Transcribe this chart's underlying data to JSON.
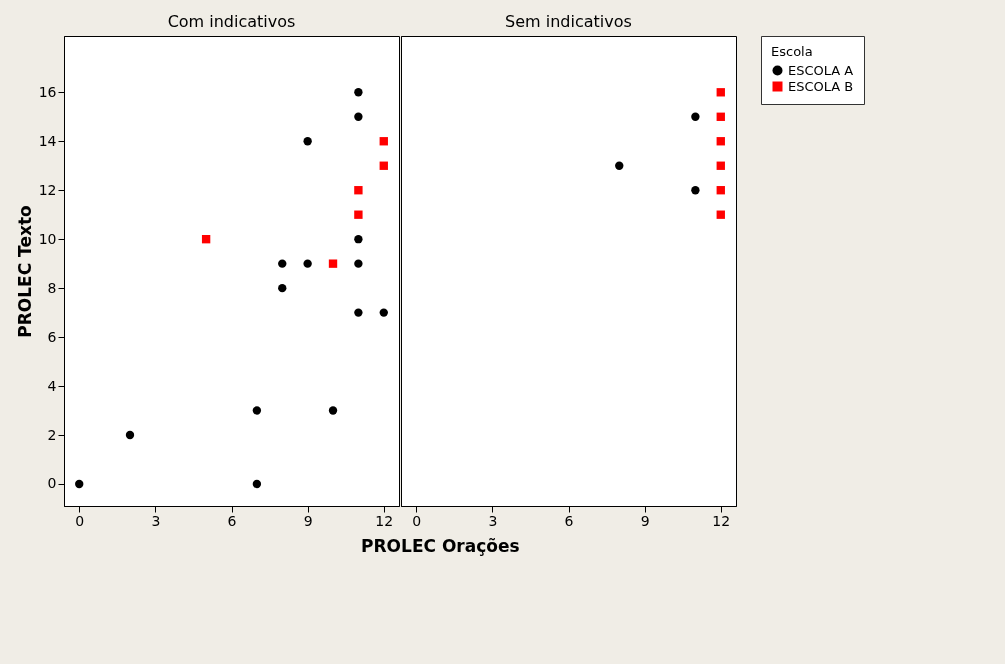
{
  "chart_data": [
    {
      "type": "scatter",
      "title": "Com indicativos",
      "xlabel": "PROLEC Orações",
      "ylabel": "PROLEC Texto",
      "xlim": [
        -0.6,
        12.6
      ],
      "ylim": [
        -0.9,
        18.3
      ],
      "xticks": [
        0,
        3,
        6,
        9,
        12
      ],
      "yticks": [
        0,
        2,
        4,
        6,
        8,
        10,
        12,
        14,
        16
      ],
      "grid": false,
      "series": [
        {
          "color": "#000000",
          "marker": "circle",
          "x": [
            0,
            2,
            7,
            7,
            8,
            8,
            9,
            9,
            10,
            11,
            11,
            11,
            11,
            11,
            12
          ],
          "values": [
            0,
            2,
            3,
            0,
            9,
            8,
            14,
            9,
            3,
            16,
            15,
            10,
            9,
            7,
            7
          ]
        },
        {
          "color": "#ff0000",
          "marker": "square",
          "x": [
            5,
            10,
            11,
            11,
            12,
            12
          ],
          "values": [
            10,
            9,
            12,
            11,
            14,
            13
          ]
        }
      ]
    },
    {
      "type": "scatter",
      "title": "Sem indicativos",
      "legend_title": "Escola",
      "legend": "top right",
      "xlim": [
        -0.6,
        12.6
      ],
      "ylim": [
        -0.9,
        18.3
      ],
      "xticks": [
        0,
        3,
        6,
        9,
        12
      ],
      "yticks": [
        0,
        2,
        4,
        6,
        8,
        10,
        12,
        14,
        16
      ],
      "grid": false,
      "tick_labels": "x",
      "series": [
        {
          "name": "ESCOLA A",
          "color": "#000000",
          "marker": "circle",
          "x": [
            8,
            11,
            11
          ],
          "values": [
            13,
            15,
            12
          ]
        },
        {
          "name": "ESCOLA B",
          "color": "#ff0000",
          "marker": "square",
          "x": [
            12,
            12,
            12,
            12,
            12,
            12
          ],
          "values": [
            16,
            15,
            14,
            13,
            12,
            11
          ]
        }
      ]
    }
  ]
}
